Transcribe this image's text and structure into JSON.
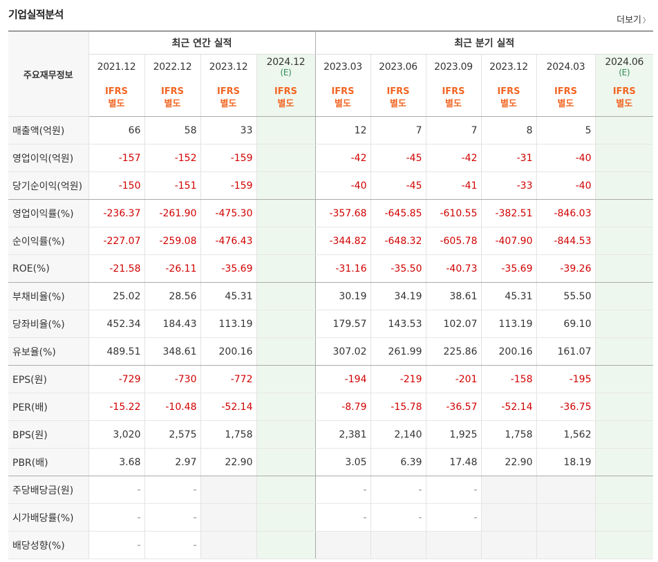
{
  "title": "기업실적분석",
  "more_label": "더보기",
  "header": {
    "row_label": "주요재무정보",
    "annual_title": "최근 연간 실적",
    "quarter_title": "최근 분기 실적",
    "annual_periods": [
      "2021.12",
      "2022.12",
      "2023.12",
      "2024.12"
    ],
    "quarter_periods": [
      "2023.03",
      "2023.06",
      "2023.09",
      "2023.12",
      "2024.03",
      "2024.06"
    ],
    "estimate_mark": "(E)",
    "ifrs_line1": "IFRS",
    "ifrs_line2": "별도"
  },
  "rows": [
    {
      "label": "매출액(억원)",
      "annual": [
        "66",
        "58",
        "33",
        ""
      ],
      "quarter": [
        "12",
        "7",
        "7",
        "8",
        "5",
        ""
      ]
    },
    {
      "label": "영업이익(억원)",
      "annual": [
        "-157",
        "-152",
        "-159",
        ""
      ],
      "quarter": [
        "-42",
        "-45",
        "-42",
        "-31",
        "-40",
        ""
      ]
    },
    {
      "label": "당기순이익(억원)",
      "annual": [
        "-150",
        "-151",
        "-159",
        ""
      ],
      "quarter": [
        "-40",
        "-45",
        "-41",
        "-33",
        "-40",
        ""
      ]
    },
    {
      "label": "영업이익률(%)",
      "annual": [
        "-236.37",
        "-261.90",
        "-475.30",
        ""
      ],
      "quarter": [
        "-357.68",
        "-645.85",
        "-610.55",
        "-382.51",
        "-846.03",
        ""
      ]
    },
    {
      "label": "순이익률(%)",
      "annual": [
        "-227.07",
        "-259.08",
        "-476.43",
        ""
      ],
      "quarter": [
        "-344.82",
        "-648.32",
        "-605.78",
        "-407.90",
        "-844.53",
        ""
      ]
    },
    {
      "label": "ROE(%)",
      "annual": [
        "-21.58",
        "-26.11",
        "-35.69",
        ""
      ],
      "quarter": [
        "-31.16",
        "-35.50",
        "-40.73",
        "-35.69",
        "-39.26",
        ""
      ]
    },
    {
      "label": "부채비율(%)",
      "annual": [
        "25.02",
        "28.56",
        "45.31",
        ""
      ],
      "quarter": [
        "30.19",
        "34.19",
        "38.61",
        "45.31",
        "55.50",
        ""
      ]
    },
    {
      "label": "당좌비율(%)",
      "annual": [
        "452.34",
        "184.43",
        "113.19",
        ""
      ],
      "quarter": [
        "179.57",
        "143.53",
        "102.07",
        "113.19",
        "69.10",
        ""
      ]
    },
    {
      "label": "유보율(%)",
      "annual": [
        "489.51",
        "348.61",
        "200.16",
        ""
      ],
      "quarter": [
        "307.02",
        "261.99",
        "225.86",
        "200.16",
        "161.07",
        ""
      ]
    },
    {
      "label": "EPS(원)",
      "annual": [
        "-729",
        "-730",
        "-772",
        ""
      ],
      "quarter": [
        "-194",
        "-219",
        "-201",
        "-158",
        "-195",
        ""
      ]
    },
    {
      "label": "PER(배)",
      "annual": [
        "-15.22",
        "-10.48",
        "-52.14",
        ""
      ],
      "quarter": [
        "-8.79",
        "-15.78",
        "-36.57",
        "-52.14",
        "-36.75",
        ""
      ]
    },
    {
      "label": "BPS(원)",
      "annual": [
        "3,020",
        "2,575",
        "1,758",
        ""
      ],
      "quarter": [
        "2,381",
        "2,140",
        "1,925",
        "1,758",
        "1,562",
        ""
      ]
    },
    {
      "label": "PBR(배)",
      "annual": [
        "3.68",
        "2.97",
        "22.90",
        ""
      ],
      "quarter": [
        "3.05",
        "6.39",
        "17.48",
        "22.90",
        "18.19",
        ""
      ]
    },
    {
      "label": "주당배당금(원)",
      "annual": [
        "-",
        "-",
        "",
        ""
      ],
      "quarter": [
        "-",
        "-",
        "-",
        "",
        "",
        ""
      ]
    },
    {
      "label": "시가배당률(%)",
      "annual": [
        "-",
        "-",
        "",
        ""
      ],
      "quarter": [
        "-",
        "-",
        "-",
        "",
        "",
        ""
      ]
    },
    {
      "label": "배당성향(%)",
      "annual": [
        "-",
        "-",
        "",
        ""
      ],
      "quarter": [
        "",
        "",
        "",
        "",
        "",
        ""
      ]
    }
  ]
}
